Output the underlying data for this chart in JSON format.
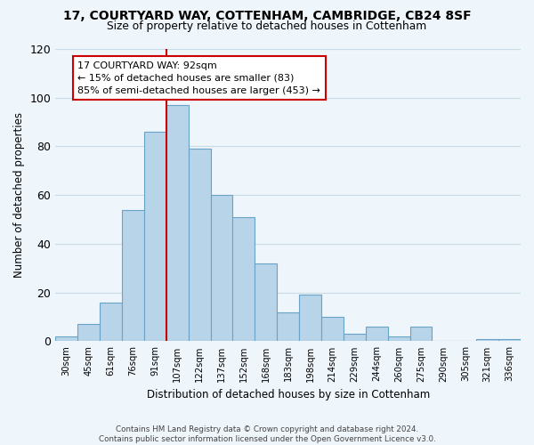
{
  "title_line1": "17, COURTYARD WAY, COTTENHAM, CAMBRIDGE, CB24 8SF",
  "title_line2": "Size of property relative to detached houses in Cottenham",
  "xlabel": "Distribution of detached houses by size in Cottenham",
  "ylabel": "Number of detached properties",
  "bin_labels": [
    "30sqm",
    "45sqm",
    "61sqm",
    "76sqm",
    "91sqm",
    "107sqm",
    "122sqm",
    "137sqm",
    "152sqm",
    "168sqm",
    "183sqm",
    "198sqm",
    "214sqm",
    "229sqm",
    "244sqm",
    "260sqm",
    "275sqm",
    "290sqm",
    "305sqm",
    "321sqm",
    "336sqm"
  ],
  "bar_heights": [
    2,
    7,
    16,
    54,
    86,
    97,
    79,
    60,
    51,
    32,
    12,
    19,
    10,
    3,
    6,
    2,
    6,
    0,
    0,
    1,
    1
  ],
  "bar_color": "#b8d4e8",
  "bar_edge_color": "#6aa3c8",
  "vline_index": 4,
  "vline_color": "#cc0000",
  "annotation_line1": "17 COURTYARD WAY: 92sqm",
  "annotation_line2": "← 15% of detached houses are smaller (83)",
  "annotation_line3": "85% of semi-detached houses are larger (453) →",
  "annotation_box_color": "#ffffff",
  "annotation_box_edge": "#cc0000",
  "ylim": [
    0,
    120
  ],
  "yticks": [
    0,
    20,
    40,
    60,
    80,
    100,
    120
  ],
  "grid_color": "#c8dce8",
  "footer_text": "Contains HM Land Registry data © Crown copyright and database right 2024.\nContains public sector information licensed under the Open Government Licence v3.0.",
  "background_color": "#eef5fb",
  "plot_bg_color": "#eef5fb"
}
